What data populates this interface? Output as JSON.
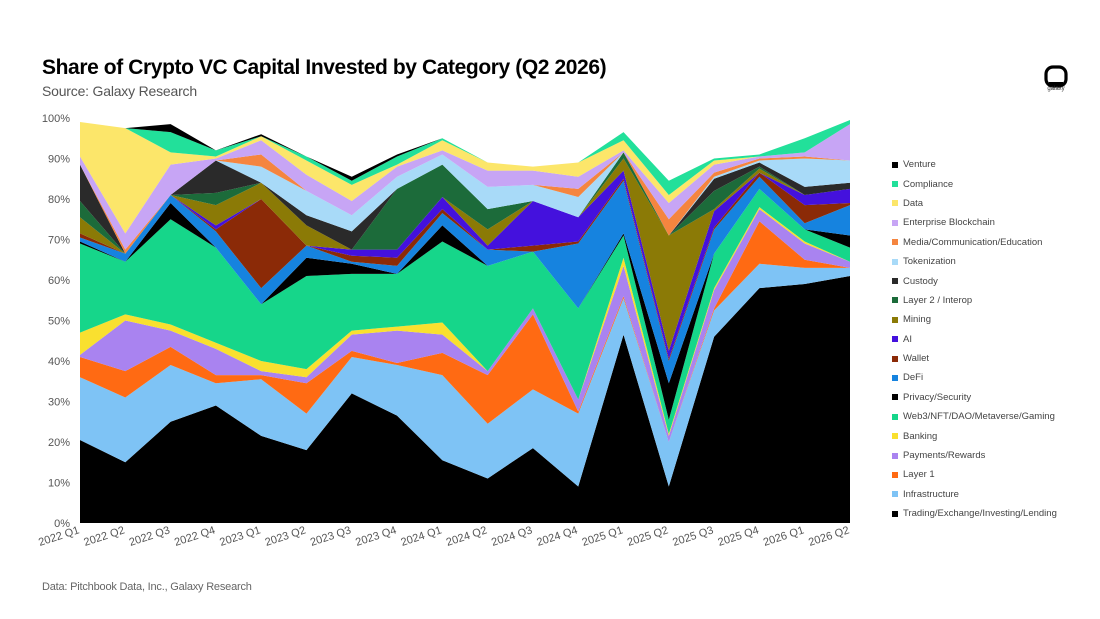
{
  "header": {
    "title": "Share of Crypto VC Capital Invested by Category (Q2 2026)",
    "subtitle": "Source: Galaxy Research"
  },
  "footer": {
    "note": "Data: Pitchbook Data, Inc., Galaxy Research"
  },
  "brand": {
    "logo_text": "galaxy",
    "logo_icon": "galaxy-logo-icon"
  },
  "chart_data": {
    "type": "area",
    "stacked": true,
    "normalized": true,
    "title": "Share of Crypto VC Capital Invested by Category (Q2 2026)",
    "subtitle": "Source: Galaxy Research",
    "xlabel": "",
    "ylabel": "",
    "ylim": [
      0,
      100
    ],
    "y_ticks": [
      "0%",
      "10%",
      "20%",
      "30%",
      "40%",
      "50%",
      "60%",
      "70%",
      "80%",
      "90%",
      "100%"
    ],
    "grid": false,
    "legend_position": "right",
    "categories": [
      "2022 Q1",
      "2022 Q2",
      "2022 Q3",
      "2022 Q4",
      "2023 Q1",
      "2023 Q2",
      "2023 Q3",
      "2023 Q4",
      "2024 Q1",
      "2024 Q2",
      "2024 Q3",
      "2024 Q4",
      "2025 Q1",
      "2025 Q2",
      "2025 Q3",
      "2025 Q4",
      "2026 Q1",
      "2026 Q2"
    ],
    "series": [
      {
        "name": "Trading/Exchange/Investing/Lending",
        "color": "#000000",
        "values": [
          20.5,
          15,
          25,
          29,
          21.5,
          18,
          32,
          26.5,
          15.5,
          11,
          18.5,
          9,
          46.5,
          9,
          46,
          58,
          59,
          61
        ]
      },
      {
        "name": "Infrastructure",
        "color": "#7ec3f5",
        "values": [
          15.5,
          16,
          14,
          5.5,
          14,
          9,
          9,
          12.5,
          21,
          13.5,
          14.5,
          18,
          9,
          11,
          6.5,
          6,
          4,
          2
        ]
      },
      {
        "name": "Layer 1",
        "color": "#ff6a13",
        "values": [
          5,
          6.5,
          4.5,
          2,
          1,
          7.5,
          1.5,
          0.5,
          5.5,
          12,
          18.5,
          0.5,
          0.5,
          0,
          0.5,
          10.5,
          2,
          0
        ]
      },
      {
        "name": "Payments/Rewards",
        "color": "#a983f0",
        "values": [
          0.5,
          12.5,
          4,
          6.5,
          1,
          1.5,
          4,
          8,
          4.5,
          1,
          1.5,
          3,
          7.5,
          1.5,
          4.5,
          3,
          4,
          1.5
        ]
      },
      {
        "name": "Banking",
        "color": "#f9e02f",
        "values": [
          5.5,
          1.5,
          1.5,
          1.5,
          2.5,
          2,
          1,
          1,
          3,
          0,
          0,
          0,
          2,
          0.5,
          0.5,
          0.5,
          0.5,
          0
        ]
      },
      {
        "name": "Web3/NFT/DAO/Metaverse/Gaming",
        "color": "#16d68a",
        "values": [
          22,
          13,
          26,
          23.5,
          14,
          23,
          14,
          13,
          20,
          26,
          14,
          22.5,
          5.5,
          3.5,
          8.5,
          4.5,
          3,
          3.5
        ]
      },
      {
        "name": "Privacy/Security",
        "color": "#000000",
        "values": [
          0.5,
          0,
          4,
          0,
          0,
          4.5,
          2.5,
          0,
          4,
          0,
          0,
          0,
          0.5,
          9,
          0,
          0,
          0,
          3
        ]
      },
      {
        "name": "DeFi",
        "color": "#1683df",
        "values": [
          1,
          2,
          2,
          4,
          4,
          3,
          0.5,
          2,
          3,
          4,
          0,
          16,
          13,
          5.5,
          6,
          3,
          1.5,
          7.5
        ]
      },
      {
        "name": "Wallet",
        "color": "#8b2a07",
        "values": [
          1,
          0,
          0,
          0.5,
          22,
          0,
          1.5,
          2,
          1,
          0,
          1.5,
          0.5,
          0.5,
          0.5,
          0.5,
          1,
          4.5,
          0.5
        ]
      },
      {
        "name": "AI",
        "color": "#4411dd",
        "values": [
          0,
          0,
          0,
          1,
          0,
          0,
          1.5,
          2,
          3,
          1,
          11,
          6,
          2,
          2,
          4,
          0,
          2.5,
          3.5
        ]
      },
      {
        "name": "Mining",
        "color": "#8b7a06",
        "values": [
          4,
          0,
          0,
          5,
          4,
          5,
          0,
          0,
          0,
          4,
          0,
          0,
          3,
          28.5,
          0.5,
          1,
          0,
          0
        ]
      },
      {
        "name": "Layer 2 / Interop",
        "color": "#1c6b3a",
        "values": [
          4,
          0,
          0,
          3,
          0,
          0,
          0,
          15,
          8,
          5,
          0,
          0,
          1.5,
          0,
          4.5,
          0.5,
          0,
          0
        ]
      },
      {
        "name": "Custody",
        "color": "#2a2a2a",
        "values": [
          9,
          0,
          0,
          8,
          0,
          2.5,
          4.5,
          0,
          0,
          0,
          0,
          0,
          0,
          0,
          3,
          1,
          2,
          1.5
        ]
      },
      {
        "name": "Tokenization",
        "color": "#a8daf8",
        "values": [
          0,
          0,
          0,
          0,
          4,
          6,
          4,
          3,
          2.5,
          5.5,
          4,
          5,
          0,
          0,
          0.5,
          0.5,
          7,
          5.5
        ]
      },
      {
        "name": "Media/Communication/Education",
        "color": "#f5853f",
        "values": [
          0,
          1,
          0,
          0,
          3,
          0,
          0,
          0,
          0,
          0,
          0,
          2,
          0,
          4,
          1,
          0.5,
          0.5,
          0
        ]
      },
      {
        "name": "Enterprise Blockchain",
        "color": "#c7a5f5",
        "values": [
          2,
          4,
          7.5,
          0.5,
          3.5,
          4,
          3.5,
          2.5,
          1,
          4,
          3.5,
          3,
          0.5,
          4,
          2,
          0.5,
          1,
          9
        ]
      },
      {
        "name": "Data",
        "color": "#fce66a",
        "values": [
          8.5,
          26,
          3,
          0.5,
          1,
          3.5,
          4,
          0.5,
          2.5,
          2,
          1,
          3.5,
          2.5,
          2,
          1,
          0,
          0,
          0
        ]
      },
      {
        "name": "Compliance",
        "color": "#22e09a",
        "values": [
          0,
          0,
          5,
          1.5,
          0,
          1,
          1,
          2,
          0.5,
          0,
          0,
          0,
          2,
          3.5,
          0.5,
          0.5,
          3.5,
          1
        ]
      },
      {
        "name": "Venture",
        "color": "#000000",
        "values": [
          0,
          0,
          2,
          0,
          0.5,
          0,
          1,
          0.5,
          0,
          0,
          0,
          0,
          0,
          0,
          0,
          0,
          0,
          0
        ]
      }
    ]
  }
}
